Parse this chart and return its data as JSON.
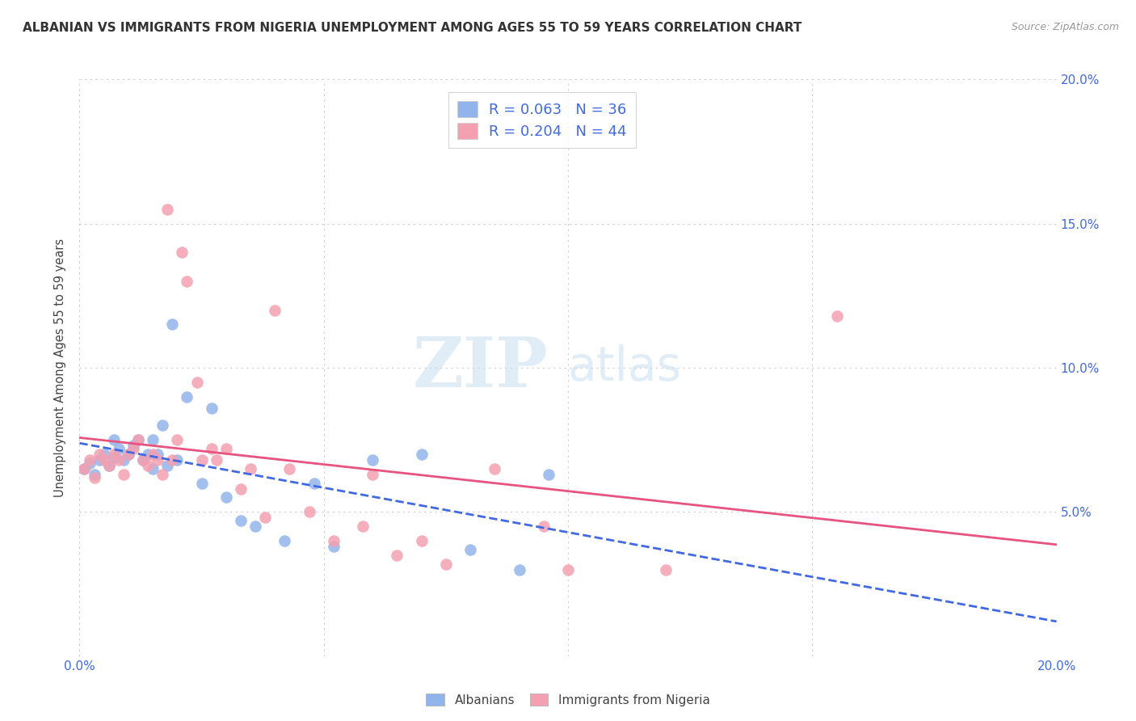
{
  "title": "ALBANIAN VS IMMIGRANTS FROM NIGERIA UNEMPLOYMENT AMONG AGES 55 TO 59 YEARS CORRELATION CHART",
  "source": "Source: ZipAtlas.com",
  "ylabel": "Unemployment Among Ages 55 to 59 years",
  "xlim": [
    0.0,
    0.2
  ],
  "ylim": [
    0.0,
    0.2
  ],
  "legend_label1": "Albanians",
  "legend_label2": "Immigrants from Nigeria",
  "R1": 0.063,
  "N1": 36,
  "R2": 0.204,
  "N2": 44,
  "color1": "#92b4ec",
  "color2": "#f4a0b0",
  "trendline1_color": "#4169e1",
  "trendline2_color": "#e75480",
  "watermark_zip": "ZIP",
  "watermark_atlas": "atlas",
  "albanians_x": [
    0.001,
    0.002,
    0.003,
    0.004,
    0.005,
    0.006,
    0.007,
    0.007,
    0.008,
    0.009,
    0.01,
    0.011,
    0.012,
    0.013,
    0.014,
    0.015,
    0.015,
    0.016,
    0.017,
    0.018,
    0.019,
    0.02,
    0.022,
    0.025,
    0.027,
    0.03,
    0.033,
    0.036,
    0.042,
    0.048,
    0.052,
    0.06,
    0.07,
    0.08,
    0.09,
    0.096
  ],
  "albanians_y": [
    0.065,
    0.067,
    0.063,
    0.068,
    0.07,
    0.066,
    0.069,
    0.075,
    0.072,
    0.068,
    0.07,
    0.073,
    0.075,
    0.068,
    0.07,
    0.075,
    0.065,
    0.07,
    0.08,
    0.066,
    0.115,
    0.068,
    0.09,
    0.06,
    0.086,
    0.055,
    0.047,
    0.045,
    0.04,
    0.06,
    0.038,
    0.068,
    0.07,
    0.037,
    0.03,
    0.063
  ],
  "nigeria_x": [
    0.001,
    0.002,
    0.003,
    0.004,
    0.005,
    0.006,
    0.007,
    0.008,
    0.009,
    0.01,
    0.011,
    0.012,
    0.013,
    0.014,
    0.015,
    0.016,
    0.017,
    0.018,
    0.019,
    0.02,
    0.021,
    0.022,
    0.024,
    0.025,
    0.027,
    0.028,
    0.03,
    0.033,
    0.035,
    0.038,
    0.04,
    0.043,
    0.047,
    0.052,
    0.058,
    0.06,
    0.065,
    0.07,
    0.075,
    0.085,
    0.095,
    0.1,
    0.12,
    0.155
  ],
  "nigeria_y": [
    0.065,
    0.068,
    0.062,
    0.07,
    0.068,
    0.066,
    0.07,
    0.068,
    0.063,
    0.07,
    0.072,
    0.075,
    0.068,
    0.066,
    0.07,
    0.068,
    0.063,
    0.155,
    0.068,
    0.075,
    0.14,
    0.13,
    0.095,
    0.068,
    0.072,
    0.068,
    0.072,
    0.058,
    0.065,
    0.048,
    0.12,
    0.065,
    0.05,
    0.04,
    0.045,
    0.063,
    0.035,
    0.04,
    0.032,
    0.065,
    0.045,
    0.03,
    0.03,
    0.118
  ]
}
